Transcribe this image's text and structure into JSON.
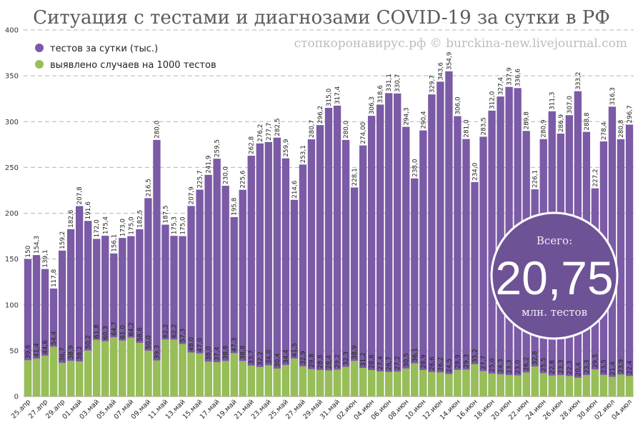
{
  "chart_data": {
    "type": "bar",
    "title": "Ситуация с тестами и диагнозами COVID-19 за сутки в РФ",
    "watermark": "стопкоронавирус.рф © burckina-new.livejournal.com",
    "ylim": [
      0,
      400
    ],
    "yticks": [
      "0",
      "50",
      "100",
      "150",
      "200",
      "250",
      "300",
      "350",
      "400"
    ],
    "grid": "horizontal-dashed",
    "legend_position": "top-left",
    "colors": {
      "tests": "#7b5aa6",
      "cases": "#97be57",
      "grid": "#b5b5b5",
      "badge": "#6e5296"
    },
    "x": [
      "25.апр",
      "26.апр",
      "27.апр",
      "28.апр",
      "29.апр",
      "30.апр",
      "01.май",
      "02.май",
      "03.май",
      "04.май",
      "05.май",
      "06.май",
      "07.май",
      "08.май",
      "09.май",
      "10.май",
      "11.май",
      "12.май",
      "13.май",
      "14.май",
      "15.май",
      "16.май",
      "17.май",
      "18.май",
      "19.май",
      "20.май",
      "21.май",
      "22.май",
      "23.май",
      "24.май",
      "25.май",
      "26.май",
      "27.май",
      "28.май",
      "29.май",
      "30.май",
      "31.май",
      "01.июн",
      "02.июн",
      "03.июн",
      "04.июн",
      "05.июн",
      "06.июн",
      "07.июн",
      "08.июн",
      "09.июн",
      "10.июн",
      "11.июн",
      "12.июн",
      "13.июн",
      "14.июн",
      "15.июн",
      "16.июн",
      "17.июн",
      "18.июн",
      "19.июн",
      "20.июн",
      "21.июн",
      "22.июн",
      "23.июн",
      "24.июн",
      "25.июн",
      "26.июн",
      "27.июн",
      "28.июн",
      "29.июн",
      "30.июн",
      "01.июл",
      "02.июл",
      "03.июл",
      "04.июл"
    ],
    "x_tick_labels": [
      "25.апр",
      "",
      "27.апр",
      "",
      "29.апр",
      "",
      "01.май",
      "",
      "03.май",
      "",
      "05.май",
      "",
      "07.май",
      "",
      "09.май",
      "",
      "11.май",
      "",
      "13.май",
      "",
      "15.май",
      "",
      "17.май",
      "",
      "19.май",
      "",
      "21.май",
      "",
      "23.май",
      "",
      "25.май",
      "",
      "27.май",
      "",
      "29.май",
      "",
      "31.май",
      "",
      "02.июн",
      "",
      "04.июн",
      "",
      "06.июн",
      "",
      "08.июн",
      "",
      "10.июн",
      "",
      "12.июн",
      "",
      "14.июн",
      "",
      "16.июн",
      "",
      "18.июн",
      "",
      "20.июн",
      "",
      "22.июн",
      "",
      "24.июн",
      "",
      "26.июн",
      "",
      "28.июн",
      "",
      "30.июн",
      "",
      "02.июл",
      "",
      "04.июл"
    ],
    "series": [
      {
        "name": "тестов за сутки (тыс.)",
        "values": [
          150,
          154.3,
          139.1,
          117.8,
          159.2,
          182.6,
          207.8,
          191.6,
          172.0,
          175.4,
          156.1,
          173.0,
          175.0,
          182.5,
          216.5,
          280.0,
          187.5,
          175.3,
          175.0,
          207.9,
          225.7,
          241.9,
          259.5,
          230.0,
          195.8,
          225.6,
          262.8,
          276.2,
          277.7,
          282.5,
          259.9,
          214.6,
          253.1,
          280.7,
          296.2,
          315.0,
          317.4,
          280.0,
          228.1,
          274.0,
          306.3,
          318.6,
          331.1,
          330.7,
          294.3,
          238.0,
          290.4,
          329.7,
          343.6,
          354.9,
          306.0,
          281.0,
          234.0,
          283.5,
          312.0,
          327.4,
          337.9,
          336.6,
          289.8,
          226.1,
          280.9,
          311.3,
          286.9,
          307.0,
          333.2,
          288.8,
          227.2,
          278.4,
          316.3,
          280.8,
          296.7
        ],
        "labels": [
          "150",
          "154,3",
          "139,1",
          "117,8",
          "159,2",
          "182,6",
          "207,8",
          "191,6",
          "172,0",
          "175,4",
          "156,1",
          "173,0",
          "175,0",
          "182,5",
          "216,5",
          "280,0",
          "187,5",
          "175,3",
          "175,0",
          "207,9",
          "225,7",
          "241,9",
          "259,5",
          "230,0",
          "195,8",
          "225,6",
          "262,8",
          "276,2",
          "277,7",
          "282,5",
          "259,9",
          "214,6",
          "253,1",
          "280,7",
          "296,2",
          "315,0",
          "317,4",
          "280,0",
          "228,1",
          "274,00",
          "306,3",
          "318,6",
          "331,1",
          "330,7",
          "294,3",
          "238,0",
          "290,4",
          "329,7",
          "343,6",
          "354,9",
          "306,0",
          "281,0",
          "234,0",
          "283,5",
          "312,0",
          "327,4",
          "337,9",
          "336,6",
          "289,8",
          "226,1",
          "280,9",
          "311,3",
          "286,9",
          "307,0",
          "333,2",
          "288,8",
          "227,2",
          "278,4",
          "316,3",
          "280,8",
          "296,7"
        ]
      },
      {
        "name": "выявлено случаев на 1000 тестов",
        "values": [
          39.6,
          41.4,
          44.6,
          54.4,
          36.7,
          38.9,
          38.2,
          50.2,
          61.8,
          60.3,
          64.7,
          61.0,
          64.2,
          58.6,
          50.0,
          39.3,
          62.2,
          62.2,
          57.3,
          48.0,
          47.0,
          38.0,
          37.4,
          38.8,
          47.3,
          38.8,
          33.7,
          32.2,
          34.0,
          30.4,
          34.4,
          41.5,
          32.9,
          29.8,
          28.8,
          28.4,
          29.2,
          32.3,
          38.9,
          31.2,
          28.8,
          27.4,
          26.7,
          27.2,
          30.5,
          36.1,
          28.9,
          26.6,
          26.2,
          24.5,
          28.9,
          29.3,
          35.2,
          27.7,
          25.0,
          24.3,
          23.3,
          23.0,
          26.2,
          32.8,
          25.5,
          22.8,
          23.3,
          22.3,
          20.4,
          23.3,
          29.5,
          23.5,
          21.4,
          23.9,
          22.4
        ],
        "labels": [
          "39,6",
          "41,4",
          "44,6",
          "54,4",
          "36,7",
          "38,9",
          "38,2",
          "50,2",
          "61,8",
          "60,3",
          "64,7",
          "61,0",
          "64,2",
          "58,6",
          "50,0",
          "39,3",
          "62,2",
          "62,2",
          "57,3",
          "48,0",
          "47,0",
          "38,0",
          "37,4",
          "38,8",
          "47,3",
          "38,8",
          "33,7",
          "32,2",
          "34,0",
          "30,4",
          "34,4",
          "41,5",
          "32,9",
          "29,8",
          "28,8",
          "28,4",
          "29,2",
          "32,3",
          "38,9",
          "31,2",
          "28,8",
          "27,4",
          "26,7",
          "27,2",
          "30,5",
          "36,1",
          "28,9",
          "26,6",
          "26,2",
          "24,5",
          "28,9",
          "29,3",
          "35,2",
          "27,7",
          "25,0",
          "24,3",
          "23,3",
          "23,0",
          "26,2",
          "32,8",
          "25,5",
          "22,8",
          "23,3",
          "22,3",
          "20,4",
          "23,3",
          "29,5",
          "23,5",
          "21,4",
          "23,9",
          "22,4"
        ]
      }
    ],
    "badge": {
      "top": "Всего:",
      "value": "20,75",
      "bottom": "млн. тестов"
    }
  }
}
